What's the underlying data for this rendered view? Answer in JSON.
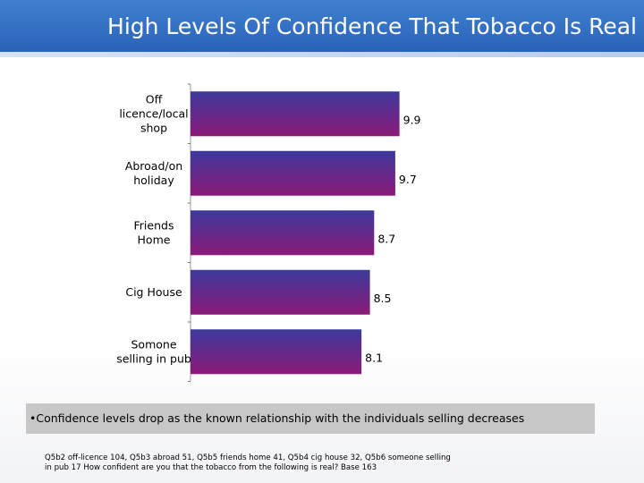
{
  "title": "High Levels Of Confidence That Tobacco Is Real",
  "chart_data": {
    "type": "bar",
    "orientation": "horizontal",
    "title": "High Levels Of Confidence That Tobacco Is Real",
    "categories": [
      "Off licence/local shop",
      "Abroad/on holiday",
      "Friends Home",
      "Cig House",
      "Somone selling in pub"
    ],
    "category_lines": [
      [
        "Off",
        "licence/local",
        "shop"
      ],
      [
        "Abroad/on",
        "holiday"
      ],
      [
        "Friends",
        "Home"
      ],
      [
        "Cig House"
      ],
      [
        "Somone",
        "selling in pub"
      ]
    ],
    "values": [
      9.9,
      9.7,
      8.7,
      8.5,
      8.1
    ],
    "value_labels": [
      "9.9",
      "9.7",
      "8.7",
      "8.5",
      "8.1"
    ],
    "xlim": [
      0,
      10
    ],
    "grid": false,
    "legend": "none",
    "colors": {
      "bar_top": "#3d3a9c",
      "bar_bottom": "#8c1a78"
    }
  },
  "note": "•Confidence levels drop as the known relationship with the individuals selling decreases",
  "source_lines": [
    "Q5b2 off-licence 104, Q5b3 abroad 51, Q5b5 friends home 41, Q5b4 cig house 32, Q5b6 someone selling",
    "in pub 17  How confident are you that the tobacco from the following is real? Base 163"
  ],
  "colors": {
    "header": "#2f6cc0",
    "note_box": "#c7c7c7"
  }
}
